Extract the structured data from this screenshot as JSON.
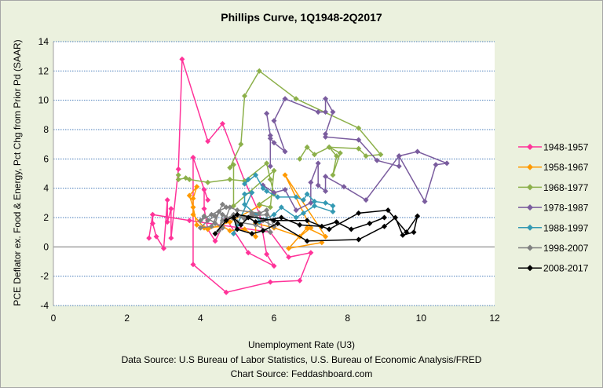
{
  "chart_data": {
    "type": "line",
    "title": "Phillips Curve, 1Q1948-2Q2017",
    "xlabel": "Unemployment Rate (U3)",
    "ylabel": "PCE Deflator ex. Food & Energy, Pct Chg from Prior Pd (SAAR)",
    "xlim": [
      0,
      12
    ],
    "ylim": [
      -4,
      14
    ],
    "xticks": [
      0,
      2,
      4,
      6,
      8,
      10,
      12
    ],
    "yticks": [
      -4,
      -2,
      0,
      2,
      4,
      6,
      8,
      10,
      12,
      14
    ],
    "grid": "horizontal dotted",
    "legend": "right",
    "markers": "diamond",
    "series": [
      {
        "name": "1948-1957",
        "color": "#ff3399",
        "points": [
          [
            2.6,
            0.6
          ],
          [
            2.7,
            2.2
          ],
          [
            2.7,
            1.6
          ],
          [
            2.8,
            0.7
          ],
          [
            3.0,
            -0.1
          ],
          [
            3.1,
            3.2
          ],
          [
            3.1,
            1.7
          ],
          [
            3.2,
            2.6
          ],
          [
            3.2,
            0.6
          ],
          [
            3.4,
            5.3
          ],
          [
            3.5,
            12.8
          ],
          [
            4.2,
            7.2
          ],
          [
            4.6,
            8.4
          ],
          [
            5.2,
            4.5
          ],
          [
            5.6,
            2.3
          ],
          [
            5.8,
            -0.5
          ],
          [
            6.0,
            -1.3
          ],
          [
            5.3,
            -0.4
          ],
          [
            4.7,
            1.9
          ],
          [
            4.4,
            0.4
          ],
          [
            4.2,
            1.2
          ],
          [
            4.1,
            2.6
          ],
          [
            4.1,
            3.9
          ],
          [
            4.2,
            3.2
          ],
          [
            3.8,
            6.1
          ],
          [
            3.8,
            -1.2
          ],
          [
            4.7,
            -3.1
          ],
          [
            5.9,
            -2.4
          ],
          [
            6.7,
            -2.3
          ],
          [
            7.0,
            -0.4
          ],
          [
            6.4,
            -0.7
          ],
          [
            5.9,
            1.0
          ],
          [
            3.7,
            1.8
          ],
          [
            2.7,
            2.2
          ]
        ]
      },
      {
        "name": "1958-1967",
        "color": "#ff9900",
        "points": [
          [
            7.3,
            0.3
          ],
          [
            6.4,
            -0.1
          ],
          [
            6.9,
            1.3
          ],
          [
            7.4,
            0.7
          ],
          [
            6.3,
            4.9
          ],
          [
            7.0,
            1.3
          ],
          [
            6.7,
            0.7
          ],
          [
            6.0,
            1.3
          ],
          [
            5.5,
            1.6
          ],
          [
            5.5,
            0.7
          ],
          [
            5.2,
            1.2
          ],
          [
            4.8,
            1.1
          ],
          [
            4.6,
            1.4
          ],
          [
            4.1,
            1.3
          ],
          [
            3.8,
            2.2
          ],
          [
            3.8,
            3.3
          ],
          [
            3.9,
            4.1
          ],
          [
            3.7,
            3.5
          ],
          [
            3.8,
            2.7
          ],
          [
            3.9,
            1.5
          ],
          [
            4.2,
            1.2
          ],
          [
            4.8,
            1.7
          ],
          [
            5.6,
            2.8
          ]
        ]
      },
      {
        "name": "1968-1977",
        "color": "#8cb04a",
        "points": [
          [
            3.4,
            4.9
          ],
          [
            3.4,
            4.6
          ],
          [
            3.6,
            4.7
          ],
          [
            3.7,
            4.6
          ],
          [
            4.2,
            4.4
          ],
          [
            4.8,
            4.6
          ],
          [
            5.2,
            4.5
          ],
          [
            5.8,
            5.7
          ],
          [
            5.9,
            4.6
          ],
          [
            6.0,
            3.6
          ],
          [
            5.6,
            2.9
          ],
          [
            5.9,
            2.7
          ],
          [
            6.0,
            5.2
          ],
          [
            4.9,
            2.8
          ],
          [
            4.9,
            5.6
          ],
          [
            4.8,
            5.4
          ],
          [
            5.1,
            7.0
          ],
          [
            5.2,
            10.3
          ],
          [
            5.6,
            12.0
          ],
          [
            6.6,
            10.1
          ],
          [
            8.3,
            8.1
          ],
          [
            8.9,
            6.3
          ],
          [
            8.5,
            6.2
          ],
          [
            8.3,
            6.7
          ],
          [
            7.5,
            6.8
          ],
          [
            7.8,
            6.4
          ],
          [
            7.6,
            4.9
          ],
          [
            7.7,
            6.2
          ],
          [
            7.5,
            6.8
          ],
          [
            7.1,
            6.3
          ],
          [
            6.9,
            6.8
          ],
          [
            6.7,
            6.0
          ]
        ]
      },
      {
        "name": "1978-1987",
        "color": "#7a5c9e",
        "points": [
          [
            5.8,
            9.1
          ],
          [
            5.9,
            7.6
          ],
          [
            5.9,
            5.5
          ],
          [
            5.9,
            7.4
          ],
          [
            6.0,
            7.1
          ],
          [
            6.3,
            6.5
          ],
          [
            6.0,
            8.6
          ],
          [
            6.3,
            10.1
          ],
          [
            7.2,
            9.2
          ],
          [
            7.4,
            9.2
          ],
          [
            7.4,
            10.1
          ],
          [
            7.6,
            9.2
          ],
          [
            7.4,
            7.7
          ],
          [
            7.4,
            7.5
          ],
          [
            8.3,
            7.3
          ],
          [
            8.8,
            5.9
          ],
          [
            9.4,
            5.5
          ],
          [
            9.4,
            6.2
          ],
          [
            9.9,
            6.5
          ],
          [
            10.7,
            5.7
          ],
          [
            10.4,
            5.6
          ],
          [
            10.1,
            3.1
          ],
          [
            9.4,
            6.2
          ],
          [
            8.5,
            3.2
          ],
          [
            7.9,
            4.1
          ],
          [
            7.4,
            4.8
          ],
          [
            7.4,
            3.8
          ],
          [
            7.2,
            4.2
          ],
          [
            7.2,
            5.7
          ],
          [
            7.0,
            4.4
          ],
          [
            7.0,
            3.0
          ],
          [
            6.6,
            2.5
          ],
          [
            6.3,
            3.9
          ],
          [
            6.0,
            3.7
          ],
          [
            5.7,
            4.2
          ]
        ]
      },
      {
        "name": "1988-1997",
        "color": "#3399b3",
        "points": [
          [
            5.3,
            4.6
          ],
          [
            5.2,
            4.3
          ],
          [
            5.5,
            4.9
          ],
          [
            5.7,
            4.0
          ],
          [
            5.8,
            3.8
          ],
          [
            6.1,
            3.4
          ],
          [
            6.6,
            3.4
          ],
          [
            6.8,
            3.2
          ],
          [
            6.9,
            3.6
          ],
          [
            7.1,
            3.1
          ],
          [
            7.4,
            3.0
          ],
          [
            7.6,
            2.8
          ],
          [
            7.6,
            2.4
          ],
          [
            7.1,
            2.8
          ],
          [
            6.8,
            2.3
          ],
          [
            6.6,
            2.0
          ],
          [
            6.2,
            2.7
          ],
          [
            6.0,
            2.2
          ],
          [
            5.6,
            1.7
          ],
          [
            5.5,
            2.2
          ],
          [
            5.2,
            2.9
          ],
          [
            5.2,
            3.6
          ],
          [
            5.4,
            3.7
          ],
          [
            5.0,
            1.5
          ],
          [
            4.9,
            0.9
          ]
        ]
      },
      {
        "name": "1998-2007",
        "color": "#808080",
        "points": [
          [
            4.4,
            2.1
          ],
          [
            4.2,
            1.8
          ],
          [
            4.0,
            1.3
          ],
          [
            4.3,
            1.4
          ],
          [
            4.6,
            2.9
          ],
          [
            4.7,
            2.7
          ],
          [
            4.3,
            2.2
          ],
          [
            4.0,
            1.8
          ],
          [
            4.1,
            2.1
          ],
          [
            4.6,
            1.3
          ],
          [
            4.8,
            2.7
          ],
          [
            5.0,
            2.5
          ],
          [
            5.6,
            2.3
          ],
          [
            5.8,
            2.5
          ],
          [
            6.0,
            1.4
          ],
          [
            5.7,
            1.8
          ],
          [
            5.4,
            2.3
          ],
          [
            5.2,
            1.9
          ],
          [
            4.9,
            2.2
          ],
          [
            4.6,
            1.8
          ],
          [
            4.5,
            1.1
          ],
          [
            4.6,
            2.2
          ],
          [
            5.0,
            1.7
          ],
          [
            5.5,
            1.5
          ],
          [
            5.9,
            1.0
          ],
          [
            5.8,
            2.2
          ],
          [
            5.4,
            2.1
          ],
          [
            4.7,
            2.0
          ],
          [
            4.5,
            2.4
          ],
          [
            4.4,
            1.6
          ]
        ]
      },
      {
        "name": "2008-2017",
        "color": "#000000",
        "points": [
          [
            4.4,
            0.9
          ],
          [
            4.7,
            1.8
          ],
          [
            5.0,
            2.2
          ],
          [
            6.0,
            1.8
          ],
          [
            6.9,
            1.8
          ],
          [
            7.5,
            1.2
          ],
          [
            8.3,
            2.3
          ],
          [
            9.1,
            2.5
          ],
          [
            9.6,
            1.0
          ],
          [
            9.9,
            2.1
          ],
          [
            9.8,
            1.0
          ],
          [
            9.5,
            0.8
          ],
          [
            9.3,
            2.0
          ],
          [
            9.0,
            1.4
          ],
          [
            8.3,
            0.5
          ],
          [
            6.9,
            0.4
          ],
          [
            6.1,
            1.6
          ],
          [
            5.7,
            1.1
          ],
          [
            5.4,
            0.9
          ],
          [
            5.0,
            1.2
          ],
          [
            4.9,
            2.0
          ],
          [
            5.1,
            1.5
          ],
          [
            5.3,
            2.0
          ],
          [
            5.5,
            1.7
          ],
          [
            6.2,
            2.0
          ],
          [
            6.7,
            1.5
          ],
          [
            7.3,
            1.4
          ],
          [
            7.7,
            1.7
          ],
          [
            8.1,
            1.2
          ],
          [
            8.6,
            1.6
          ],
          [
            9.0,
            2.0
          ]
        ]
      }
    ]
  },
  "footer": {
    "data_source": "Data Source: U.S Bureau of Labor Statistics, U.S. Bureau of Economic Analysis/FRED",
    "chart_source": "Chart Source: Feddashboard.com"
  }
}
